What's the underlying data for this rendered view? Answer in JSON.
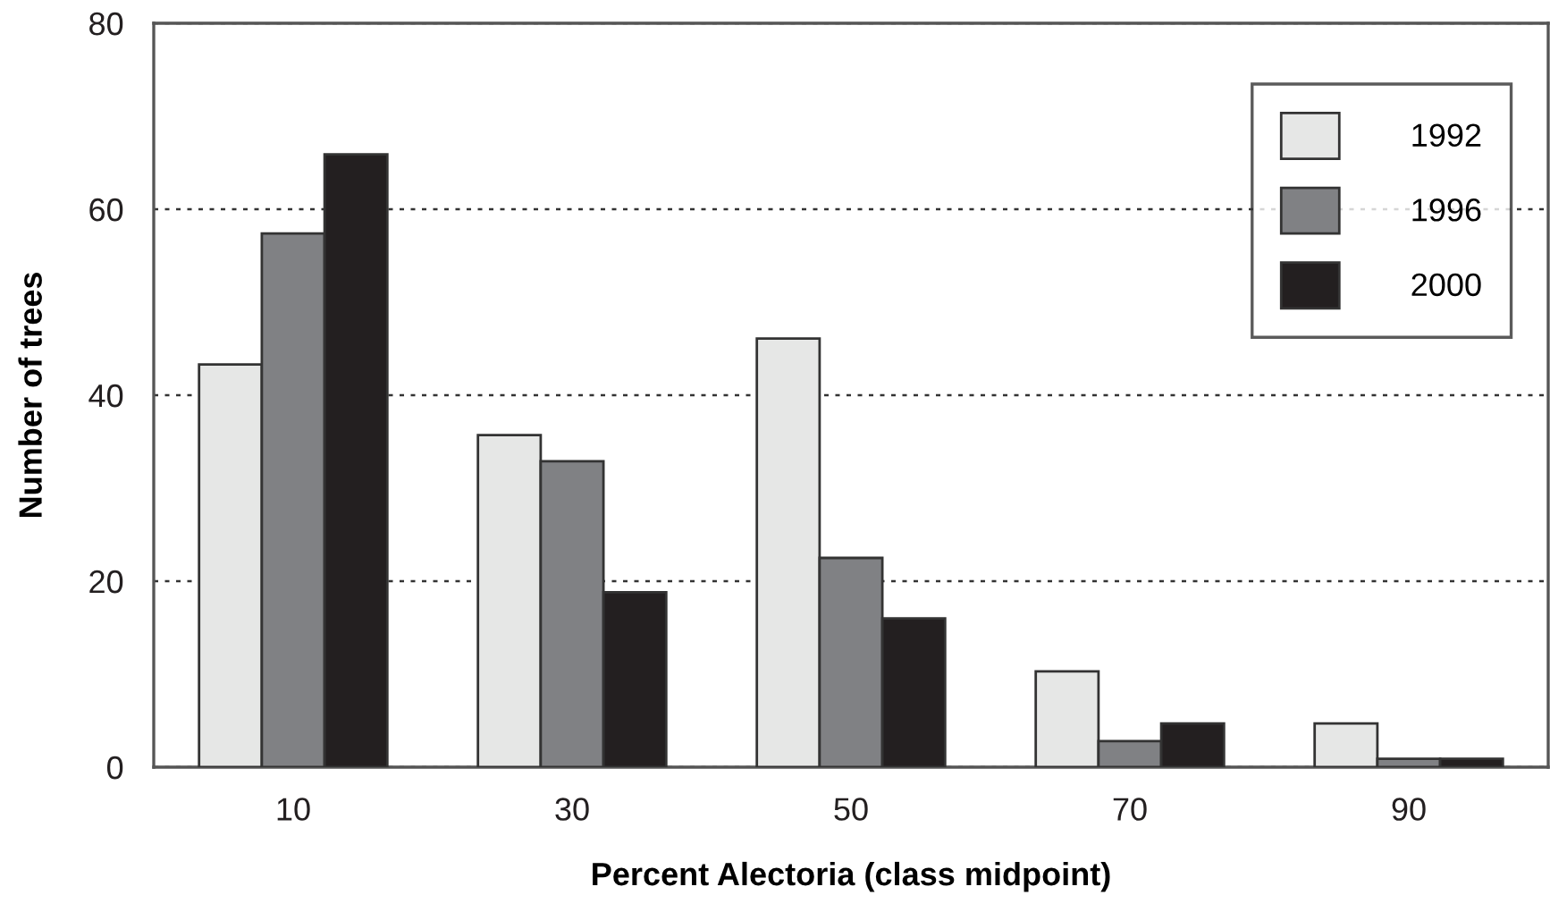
{
  "chart_data": {
    "type": "bar",
    "xlabel": "Percent Alectoria (class midpoint)",
    "ylabel": "Number of trees",
    "categories": [
      "10",
      "30",
      "50",
      "70",
      "90"
    ],
    "series": [
      {
        "name": "1992",
        "color": "#e6e7e6",
        "values": [
          43.3,
          35.7,
          46.1,
          10.3,
          4.7
        ]
      },
      {
        "name": "1996",
        "color": "#808184",
        "values": [
          57.4,
          32.9,
          22.5,
          2.8,
          0.9
        ]
      },
      {
        "name": "2000",
        "color": "#231f20",
        "values": [
          65.9,
          18.8,
          16.0,
          4.7,
          0.9
        ]
      }
    ],
    "ylim": [
      0,
      80
    ],
    "yticks": [
      0,
      20,
      40,
      60,
      80
    ],
    "grid": "y",
    "legend": "top right"
  }
}
